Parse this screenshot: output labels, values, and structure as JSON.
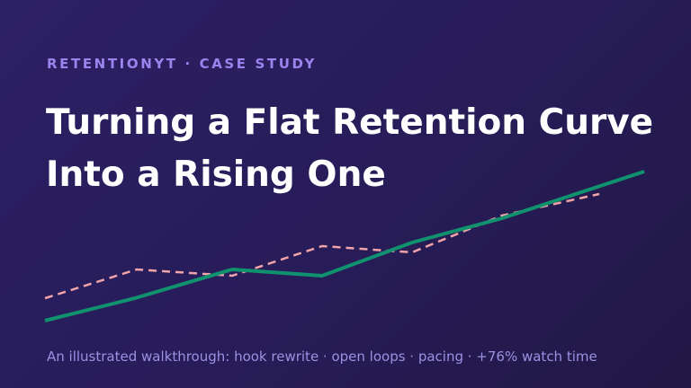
{
  "eyebrow": "RETENTIONYT · CASE STUDY",
  "title": {
    "line1": "Turning a Flat Retention Curve",
    "line2": "Into a Rising One"
  },
  "subtitle": "An illustrated walkthrough: hook rewrite · open loops · pacing · +76% watch time"
}
